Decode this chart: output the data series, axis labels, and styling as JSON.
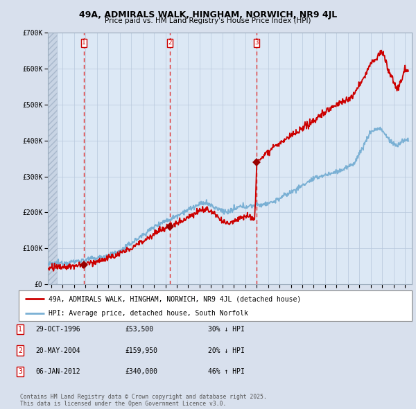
{
  "title1": "49A, ADMIRALS WALK, HINGHAM, NORWICH, NR9 4JL",
  "title2": "Price paid vs. HM Land Registry's House Price Index (HPI)",
  "bg_color": "#d8e0ed",
  "plot_bg": "#dce8f5",
  "red_line_color": "#cc0000",
  "blue_line_color": "#7ab0d4",
  "sale_marker_color": "#990000",
  "vline_color": "#dd3333",
  "legend_entry1": "49A, ADMIRALS WALK, HINGHAM, NORWICH, NR9 4JL (detached house)",
  "legend_entry2": "HPI: Average price, detached house, South Norfolk",
  "table_rows": [
    {
      "num": "1",
      "date": "29-OCT-1996",
      "price": "£53,500",
      "hpi": "30% ↓ HPI"
    },
    {
      "num": "2",
      "date": "20-MAY-2004",
      "price": "£159,950",
      "hpi": "20% ↓ HPI"
    },
    {
      "num": "3",
      "date": "06-JAN-2012",
      "price": "£340,000",
      "hpi": "46% ↑ HPI"
    }
  ],
  "footnote": "Contains HM Land Registry data © Crown copyright and database right 2025.\nThis data is licensed under the Open Government Licence v3.0.",
  "ylim": [
    0,
    700000
  ],
  "yticks": [
    0,
    100000,
    200000,
    300000,
    400000,
    500000,
    600000,
    700000
  ],
  "ytick_labels": [
    "£0",
    "£100K",
    "£200K",
    "£300K",
    "£400K",
    "£500K",
    "£600K",
    "£700K"
  ],
  "xlim_left": 1993.7,
  "xlim_right": 2025.6,
  "hpi_anchors": [
    [
      1993.7,
      55000
    ],
    [
      1994.5,
      58000
    ],
    [
      1996.0,
      63000
    ],
    [
      1997.0,
      68000
    ],
    [
      1998.5,
      76000
    ],
    [
      2000.0,
      92000
    ],
    [
      2001.5,
      125000
    ],
    [
      2002.5,
      148000
    ],
    [
      2003.5,
      170000
    ],
    [
      2004.5,
      182000
    ],
    [
      2005.5,
      200000
    ],
    [
      2006.5,
      215000
    ],
    [
      2007.5,
      228000
    ],
    [
      2008.5,
      210000
    ],
    [
      2009.5,
      200000
    ],
    [
      2010.5,
      215000
    ],
    [
      2011.5,
      218000
    ],
    [
      2012.5,
      222000
    ],
    [
      2013.5,
      230000
    ],
    [
      2014.5,
      248000
    ],
    [
      2015.5,
      265000
    ],
    [
      2016.5,
      285000
    ],
    [
      2017.5,
      300000
    ],
    [
      2018.5,
      308000
    ],
    [
      2019.5,
      318000
    ],
    [
      2020.5,
      335000
    ],
    [
      2021.2,
      375000
    ],
    [
      2022.0,
      425000
    ],
    [
      2022.8,
      435000
    ],
    [
      2023.3,
      415000
    ],
    [
      2023.8,
      395000
    ],
    [
      2024.3,
      385000
    ],
    [
      2024.8,
      400000
    ],
    [
      2025.3,
      400000
    ]
  ],
  "prop_anchors": [
    [
      1993.7,
      45000
    ],
    [
      1995.0,
      48000
    ],
    [
      1996.0,
      50000
    ],
    [
      1996.83,
      53500
    ],
    [
      1997.5,
      60000
    ],
    [
      1998.5,
      68000
    ],
    [
      1999.5,
      78000
    ],
    [
      2000.5,
      92000
    ],
    [
      2001.5,
      110000
    ],
    [
      2002.5,
      130000
    ],
    [
      2003.5,
      150000
    ],
    [
      2004.38,
      159950
    ],
    [
      2005.0,
      170000
    ],
    [
      2005.8,
      185000
    ],
    [
      2006.5,
      195000
    ],
    [
      2007.0,
      205000
    ],
    [
      2007.5,
      210000
    ],
    [
      2008.0,
      202000
    ],
    [
      2008.5,
      190000
    ],
    [
      2009.0,
      172000
    ],
    [
      2009.5,
      170000
    ],
    [
      2010.0,
      178000
    ],
    [
      2010.5,
      185000
    ],
    [
      2011.0,
      192000
    ],
    [
      2011.5,
      188000
    ],
    [
      2011.83,
      182000
    ],
    [
      2012.02,
      340000
    ],
    [
      2012.5,
      355000
    ],
    [
      2013.0,
      370000
    ],
    [
      2013.5,
      385000
    ],
    [
      2014.0,
      390000
    ],
    [
      2014.5,
      400000
    ],
    [
      2015.0,
      415000
    ],
    [
      2015.5,
      420000
    ],
    [
      2016.0,
      430000
    ],
    [
      2016.5,
      445000
    ],
    [
      2017.0,
      455000
    ],
    [
      2017.5,
      468000
    ],
    [
      2018.0,
      480000
    ],
    [
      2018.5,
      490000
    ],
    [
      2019.0,
      500000
    ],
    [
      2019.5,
      508000
    ],
    [
      2020.0,
      515000
    ],
    [
      2020.5,
      525000
    ],
    [
      2021.0,
      555000
    ],
    [
      2021.5,
      580000
    ],
    [
      2022.0,
      615000
    ],
    [
      2022.5,
      630000
    ],
    [
      2022.9,
      645000
    ],
    [
      2023.2,
      635000
    ],
    [
      2023.6,
      590000
    ],
    [
      2024.0,
      565000
    ],
    [
      2024.3,
      545000
    ],
    [
      2024.7,
      565000
    ],
    [
      2025.0,
      600000
    ],
    [
      2025.3,
      595000
    ]
  ]
}
